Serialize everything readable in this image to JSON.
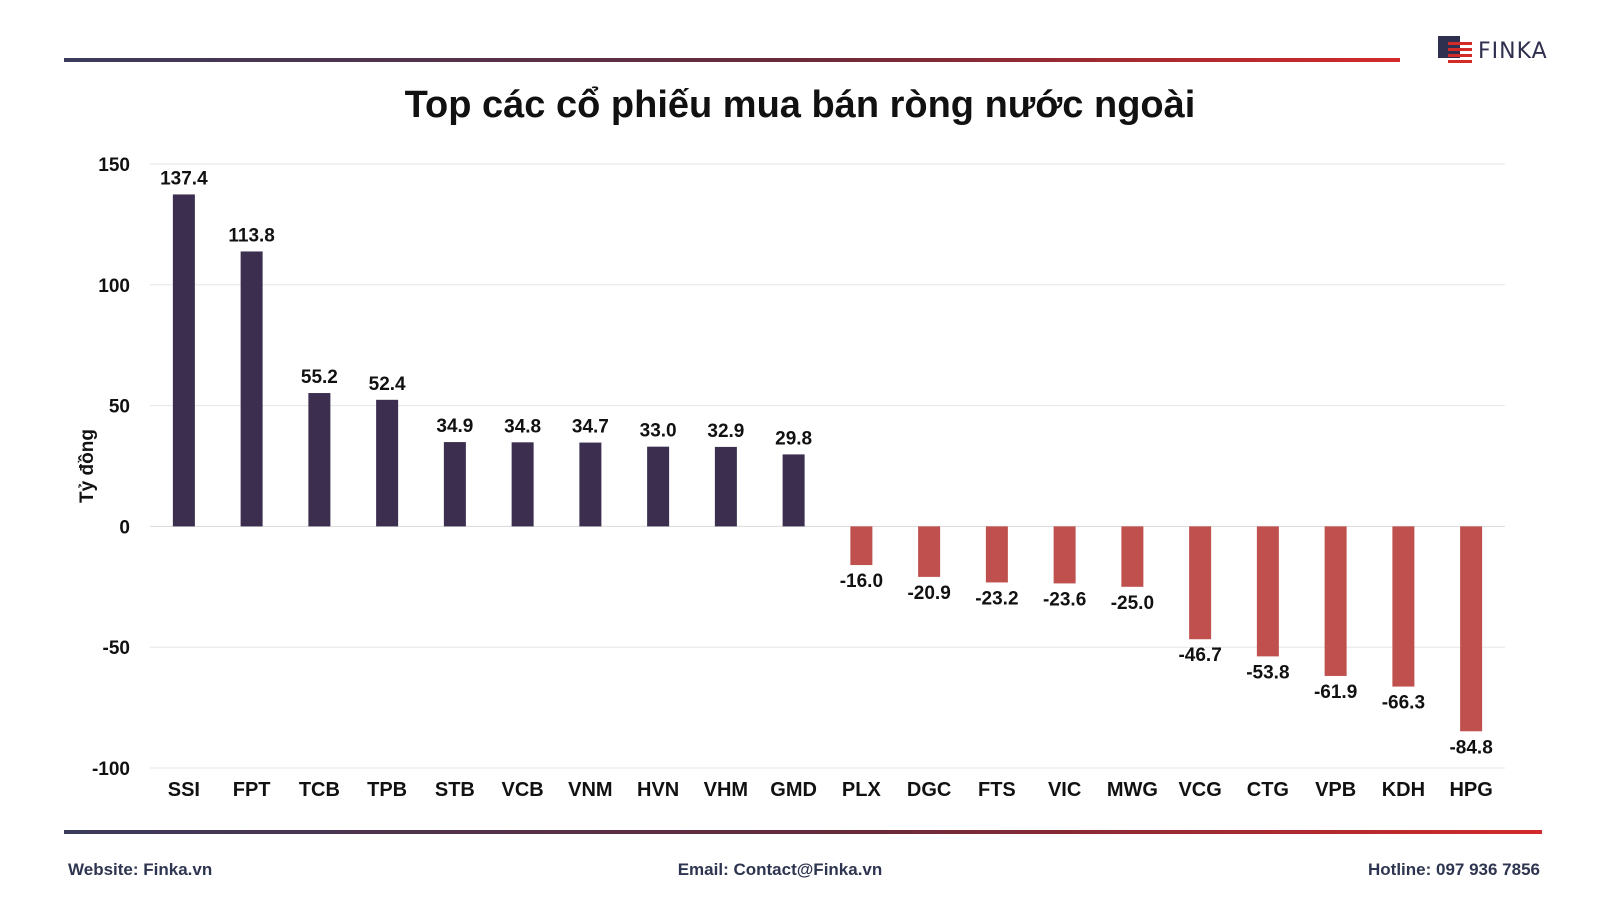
{
  "title": "Top các cổ phiếu mua bán ròng nước ngoài",
  "logo": {
    "text": "FINKA"
  },
  "footer": {
    "website": "Website: Finka.vn",
    "email": "Email: Contact@Finka.vn",
    "hotline": "Hotline: 097 936 7856"
  },
  "colors": {
    "positive": "#3b2e4f",
    "negative": "#c0504d",
    "accent": "#d32a2a"
  },
  "chart_data": {
    "type": "bar",
    "title": "Top các cổ phiếu mua bán ròng nước ngoài",
    "xlabel": "",
    "ylabel": "Tỷ đồng",
    "ylim": [
      -100,
      150
    ],
    "yticks": [
      150,
      100,
      50,
      0,
      -50,
      -100
    ],
    "grid": true,
    "categories": [
      "SSI",
      "FPT",
      "TCB",
      "TPB",
      "STB",
      "VCB",
      "VNM",
      "HVN",
      "VHM",
      "GMD",
      "PLX",
      "DGC",
      "FTS",
      "VIC",
      "MWG",
      "VCG",
      "CTG",
      "VPB",
      "KDH",
      "HPG"
    ],
    "values": [
      137.4,
      113.8,
      55.2,
      52.4,
      34.9,
      34.8,
      34.7,
      33.0,
      32.9,
      29.8,
      -16.0,
      -20.9,
      -23.2,
      -23.6,
      -25.0,
      -46.7,
      -53.8,
      -61.9,
      -66.3,
      -84.8
    ],
    "data_labels": [
      "137.4",
      "113.8",
      "55.2",
      "52.4",
      "34.9",
      "34.8",
      "34.7",
      "33.0",
      "32.9",
      "29.8",
      "-16.0",
      "-20.9",
      "-23.2",
      "-23.6",
      "-25.0",
      "-46.7",
      "-53.8",
      "-61.9",
      "-66.3",
      "-84.8"
    ]
  }
}
